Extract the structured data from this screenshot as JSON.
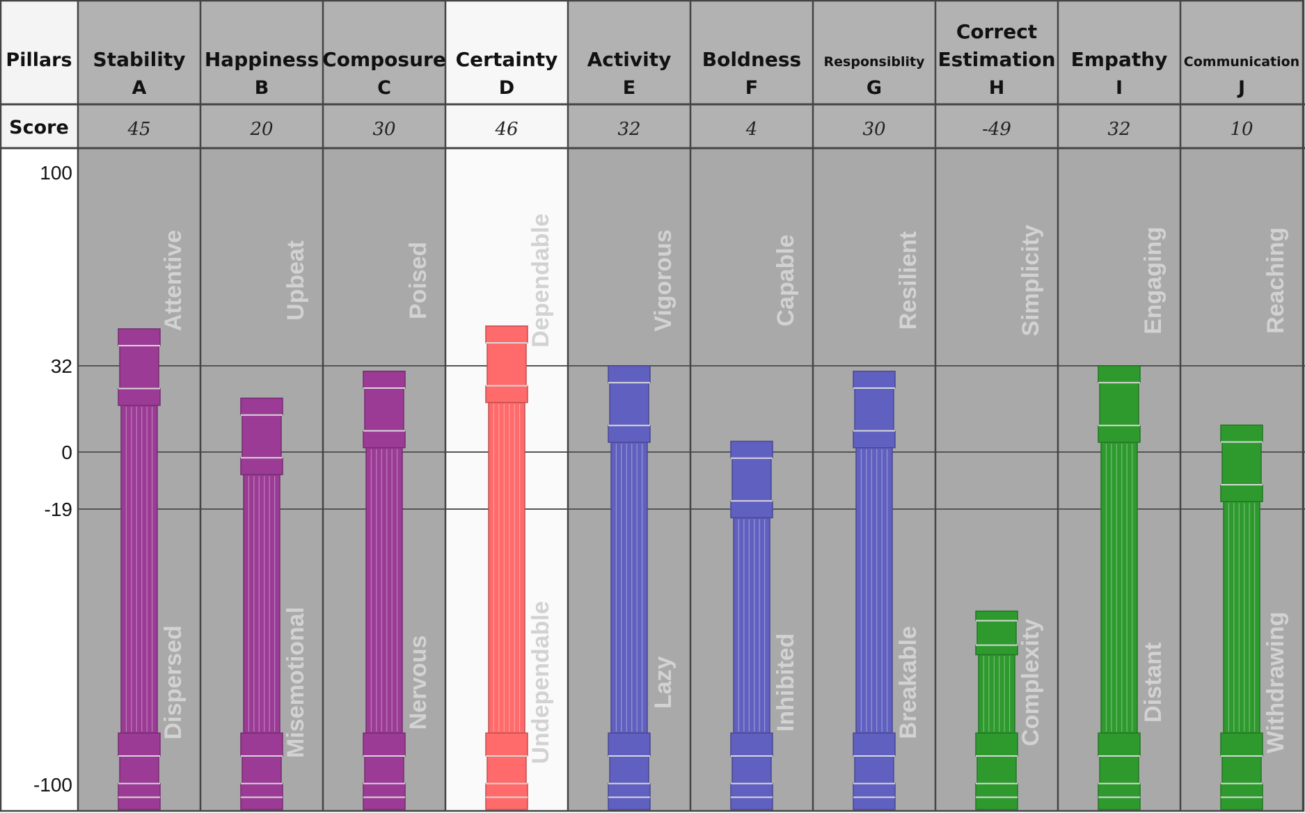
{
  "header": {
    "pillars_label": "Pillars",
    "score_label": "Score"
  },
  "chart_data": {
    "type": "bar",
    "categories": [
      "Stability A",
      "Happiness B",
      "Composure C",
      "Certainty D",
      "Activity E",
      "Boldness F",
      "Responsiblity G",
      "Correct Estimation H",
      "Empathy I",
      "Communication J"
    ],
    "y_ticks": [
      "100",
      "32",
      "0",
      "-19",
      "-100"
    ],
    "ylim": [
      -100,
      100
    ],
    "grid": true,
    "pillars": [
      {
        "name": [
          "Stability",
          "A"
        ],
        "score": 45,
        "score_label": "45",
        "color": "#9b3b95",
        "high": "Attentive",
        "low": "Dispersed"
      },
      {
        "name": [
          "Happiness",
          "B"
        ],
        "score": 20,
        "score_label": "20",
        "color": "#9b3b95",
        "high": "Upbeat",
        "low": "Misemotional"
      },
      {
        "name": [
          "Composure",
          "C"
        ],
        "score": 30,
        "score_label": "30",
        "color": "#9b3b95",
        "high": "Poised",
        "low": "Nervous"
      },
      {
        "name": [
          "Certainty",
          "D"
        ],
        "score": 46,
        "score_label": "46",
        "color": "#ff6a6a",
        "high": "Dependable",
        "low": "Undependable",
        "highlight": true
      },
      {
        "name": [
          "Activity",
          "E"
        ],
        "score": 32,
        "score_label": "32",
        "color": "#6060c0",
        "high": "Vigorous",
        "low": "Lazy"
      },
      {
        "name": [
          "Boldness",
          "F"
        ],
        "score": 4,
        "score_label": "4",
        "color": "#6060c0",
        "high": "Capable",
        "low": "Inhibited"
      },
      {
        "name": [
          "Responsiblity",
          "G"
        ],
        "score": 30,
        "score_label": "30",
        "color": "#6060c0",
        "high": "Resilient",
        "low": "Breakable"
      },
      {
        "name": [
          "Correct",
          "Estimation",
          "H"
        ],
        "score": -49,
        "score_label": "-49",
        "color": "#2e9a2e",
        "high": "Simplicity",
        "low": "Complexity"
      },
      {
        "name": [
          "Empathy",
          "I"
        ],
        "score": 32,
        "score_label": "32",
        "color": "#2e9a2e",
        "high": "Engaging",
        "low": "Distant"
      },
      {
        "name": [
          "Communication",
          "J"
        ],
        "score": 10,
        "score_label": "10",
        "color": "#2e9a2e",
        "high": "Reaching",
        "low": "Withdrawing"
      }
    ]
  }
}
